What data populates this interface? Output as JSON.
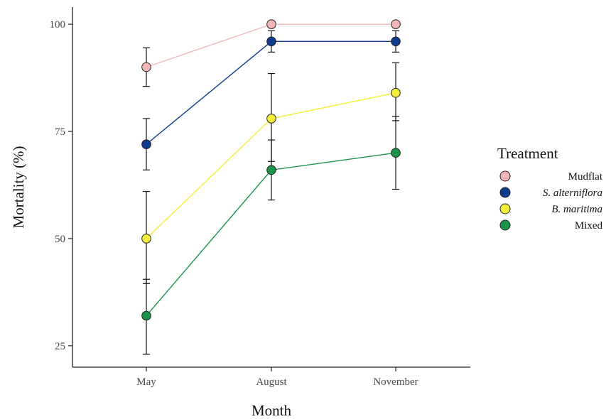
{
  "chart_data": {
    "type": "line",
    "xlabel": "Month",
    "ylabel": "Mortality (%)",
    "categories": [
      "May",
      "August",
      "November"
    ],
    "y_ticks": [
      25,
      50,
      75,
      100
    ],
    "ylim": [
      20,
      104
    ],
    "grid": false,
    "legend": {
      "title": "Treatment",
      "placement": "right"
    },
    "series": [
      {
        "name": "Mudflat",
        "italic": false,
        "color": "#f4b6b6",
        "values": [
          90,
          100,
          100
        ],
        "err_low": [
          85.5,
          100,
          100
        ],
        "err_high": [
          94.5,
          100,
          100
        ]
      },
      {
        "name": "S. alterniflora",
        "italic": true,
        "color": "#0d3b8e",
        "values": [
          72,
          96,
          96
        ],
        "err_low": [
          66,
          93.5,
          93.5
        ],
        "err_high": [
          78,
          98.5,
          98.5
        ]
      },
      {
        "name": "B. maritima",
        "italic": true,
        "color": "#f5ee3a",
        "values": [
          50,
          78,
          84
        ],
        "err_low": [
          39.5,
          68,
          77.5
        ],
        "err_high": [
          61,
          88.5,
          91
        ]
      },
      {
        "name": "Mixed",
        "italic": false,
        "color": "#1a9448",
        "values": [
          32,
          66,
          70
        ],
        "err_low": [
          23,
          59,
          61.5
        ],
        "err_high": [
          40.5,
          73,
          78.5
        ]
      }
    ]
  }
}
